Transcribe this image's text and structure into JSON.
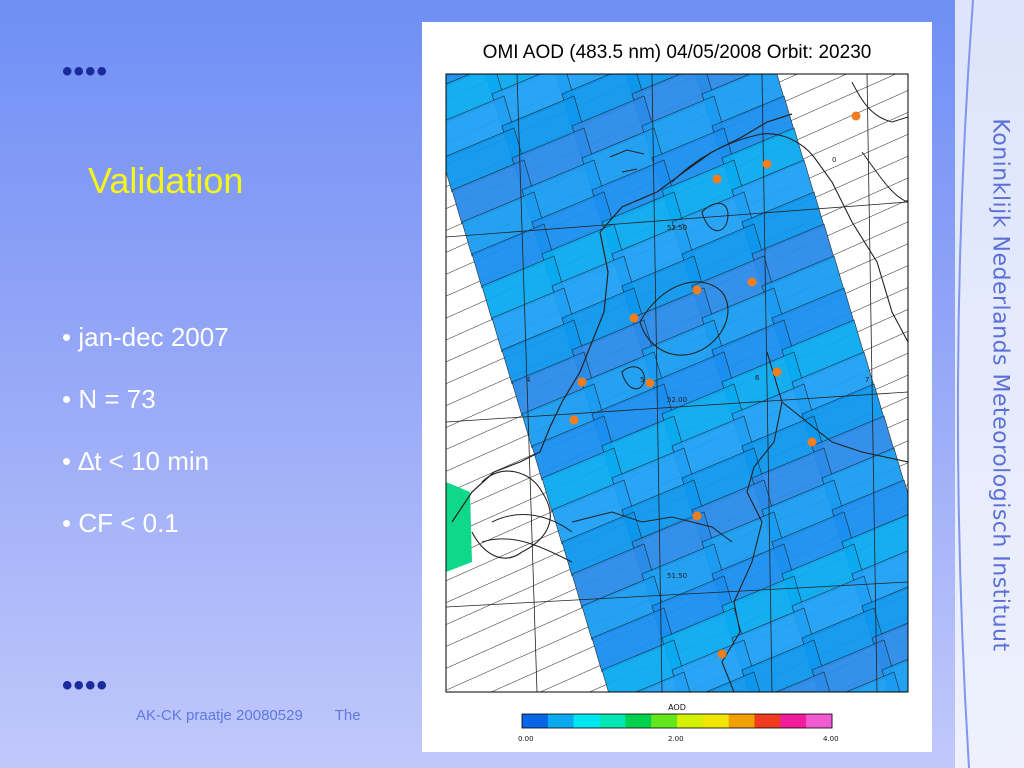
{
  "slide": {
    "title": "Validation",
    "bullets": [
      "• jan-dec 2007",
      "• N = 73",
      "• ∆t < 10 min",
      "• CF < 0.1"
    ],
    "footer": [
      "AK-CK praatje 20080529",
      "The"
    ],
    "brand": "Koninklijk Nederlands Meteorologisch Instituut",
    "dots_glyph": "••••",
    "colors": {
      "title": "#f5f518",
      "bullets": "#ffffff",
      "dots": "#1b2a9c",
      "brand": "#5b6fd6"
    }
  },
  "map": {
    "title": "OMI AOD (483.5 nm) 04/05/2008 Orbit: 20230",
    "colorbar": {
      "label": "AOD",
      "tick_labels": [
        "0.00",
        "2.00",
        "4.00"
      ],
      "colors": [
        "#0a64e6",
        "#0aaaf0",
        "#00e6f0",
        "#00e6b4",
        "#00d250",
        "#64e61e",
        "#d2f000",
        "#f0e600",
        "#f0a000",
        "#f03c1e",
        "#f01e9b",
        "#f05ad2"
      ]
    },
    "grid_labels": [
      "52.50",
      "52.00",
      "51.50",
      "4",
      "5",
      "6",
      "7",
      "0"
    ],
    "stations": 13,
    "station_color": "#f07d1e"
  }
}
